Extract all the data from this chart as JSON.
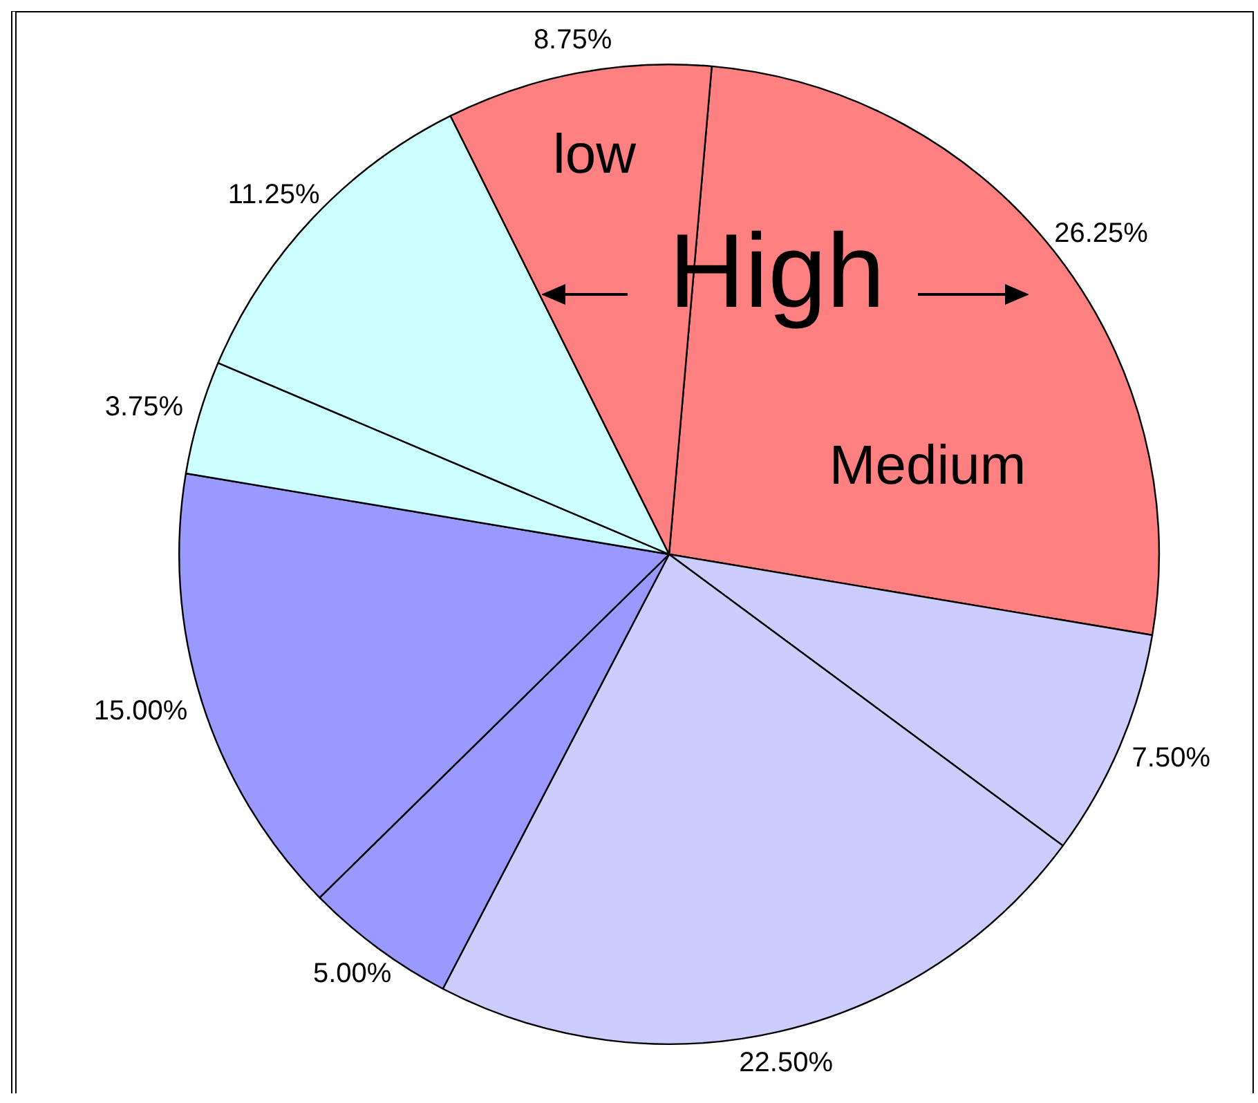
{
  "chart_data": {
    "type": "pie",
    "categories": [
      null,
      null,
      null,
      null,
      null,
      null,
      null,
      null
    ],
    "values": [
      26.25,
      7.5,
      22.5,
      5,
      15,
      3.75,
      11.25,
      8.75
    ],
    "colors": [
      "#ff8080",
      "#ccccff",
      "#ccccff",
      "#9999ff",
      "#9999ff",
      "#ccffff",
      "#ccffff",
      "#ff8080"
    ],
    "value_labels": [
      "26.25%",
      "7.50%",
      "22.50%",
      "5.00%",
      "15.00%",
      "3.75%",
      "11.25%",
      "8.75%"
    ],
    "annotations": [
      "low",
      "High",
      "Medium"
    ],
    "legend": false
  }
}
